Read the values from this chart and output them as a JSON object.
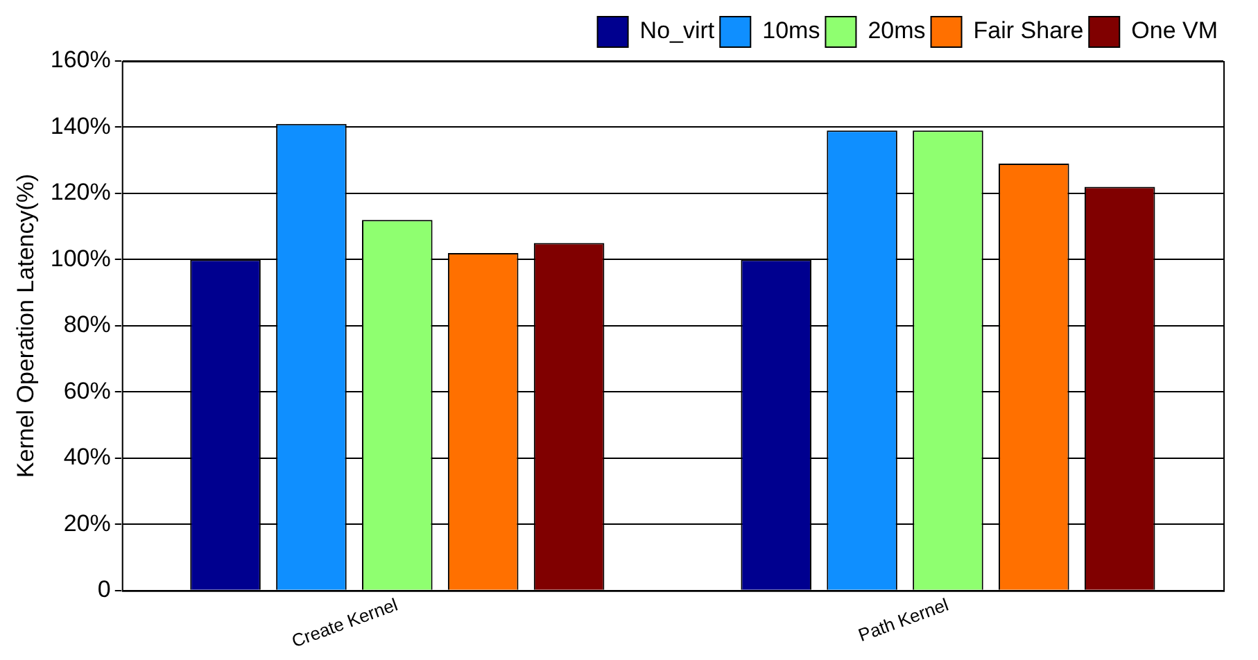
{
  "chart_data": {
    "type": "bar",
    "ylabel": "Kernel Operation Latency(%)",
    "categories": [
      "Create Kernel",
      "Path Kernel"
    ],
    "series": [
      {
        "name": "No_virt",
        "color": "#00008f",
        "values": [
          100,
          100
        ]
      },
      {
        "name": "10ms",
        "color": "#0f8fff",
        "values": [
          141,
          139
        ]
      },
      {
        "name": "20ms",
        "color": "#8fff70",
        "values": [
          112,
          139
        ]
      },
      {
        "name": "Fair Share",
        "color": "#ff7000",
        "values": [
          102,
          129
        ]
      },
      {
        "name": "One VM",
        "color": "#800000",
        "values": [
          105,
          122
        ]
      }
    ],
    "ylim": [
      0,
      160
    ],
    "yticks": [
      {
        "value": 0,
        "label": "0"
      },
      {
        "value": 20,
        "label": "20%"
      },
      {
        "value": 40,
        "label": "40%"
      },
      {
        "value": 60,
        "label": "60%"
      },
      {
        "value": 80,
        "label": "80%"
      },
      {
        "value": 100,
        "label": "100%"
      },
      {
        "value": 120,
        "label": "120%"
      },
      {
        "value": 140,
        "label": "140%"
      },
      {
        "value": 160,
        "label": "160%"
      }
    ],
    "grid": "y",
    "legend": "top right"
  }
}
